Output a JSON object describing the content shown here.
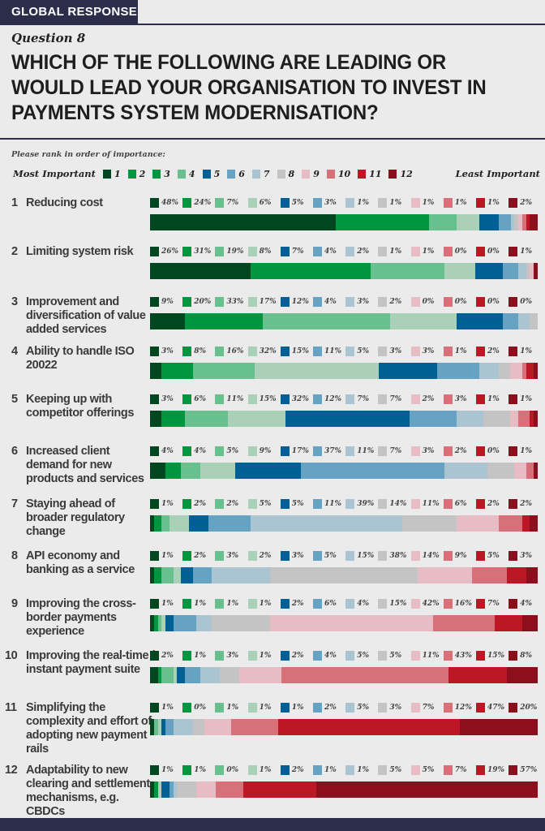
{
  "header": {
    "tag": "GLOBAL RESPONSE",
    "question": "Question 8",
    "title": "WHICH OF THE FOLLOWING ARE LEADING OR WOULD LEAD YOUR ORGANISATION TO INVEST IN PAYMENTS SYSTEM MODERNISATION?"
  },
  "chart_data": {
    "type": "bar",
    "stacked": true,
    "orientation": "horizontal",
    "instruction": "Please rank in order of importance:",
    "legend_start": "Most Important",
    "legend_end": "Least Important",
    "ranks": [
      "1",
      "2",
      "3",
      "4",
      "5",
      "6",
      "7",
      "8",
      "9",
      "10",
      "11",
      "12"
    ],
    "colors": [
      "#00471f",
      "#00963f",
      "#67c08e",
      "#aad0b8",
      "#005f95",
      "#66a2c2",
      "#aac4d2",
      "#c4c4c4",
      "#e7bcc4",
      "#d8707a",
      "#bd1625",
      "#8b0f1c"
    ],
    "legend_colors": [
      "#00471f",
      "#00963f",
      "#00963f",
      "#67c08e",
      "#005f95",
      "#66a2c2",
      "#aac4d2",
      "#c4c4c4",
      "#e7bcc4",
      "#d8707a",
      "#bd1625",
      "#8b0f1c"
    ],
    "categories": [
      {
        "num": "1",
        "label": "Reducing cost",
        "values": [
          48,
          24,
          7,
          6,
          5,
          3,
          1,
          1,
          1,
          1,
          1,
          2
        ]
      },
      {
        "num": "2",
        "label": "Limiting system risk",
        "values": [
          26,
          31,
          19,
          8,
          7,
          4,
          2,
          1,
          1,
          0,
          0,
          1
        ]
      },
      {
        "num": "3",
        "label": "Improvement and diversification of value added services",
        "values": [
          9,
          20,
          33,
          17,
          12,
          4,
          3,
          2,
          0,
          0,
          0,
          0
        ]
      },
      {
        "num": "4",
        "label": "Ability to handle ISO 20022",
        "values": [
          3,
          8,
          16,
          32,
          15,
          11,
          5,
          3,
          3,
          1,
          2,
          1
        ]
      },
      {
        "num": "5",
        "label": "Keeping up with competitor offerings",
        "values": [
          3,
          6,
          11,
          15,
          32,
          12,
          7,
          7,
          2,
          3,
          1,
          1
        ]
      },
      {
        "num": "6",
        "label": "Increased client demand for new products and services",
        "values": [
          4,
          4,
          5,
          9,
          17,
          37,
          11,
          7,
          3,
          2,
          0,
          1
        ]
      },
      {
        "num": "7",
        "label": "Staying ahead of broader regulatory change",
        "values": [
          1,
          2,
          2,
          5,
          5,
          11,
          39,
          14,
          11,
          6,
          2,
          2
        ]
      },
      {
        "num": "8",
        "label": "API economy and banking as a service",
        "values": [
          1,
          2,
          3,
          2,
          3,
          5,
          15,
          38,
          14,
          9,
          5,
          3
        ]
      },
      {
        "num": "9",
        "label": "Improving the cross-border payments experience",
        "values": [
          1,
          1,
          1,
          1,
          2,
          6,
          4,
          15,
          42,
          16,
          7,
          4
        ]
      },
      {
        "num": "10",
        "label": "Improving the real-time / instant payment suite",
        "values": [
          2,
          1,
          3,
          1,
          2,
          4,
          5,
          5,
          11,
          43,
          15,
          8
        ]
      },
      {
        "num": "11",
        "label": "Simplifying the complexity and effort of adopting new payment rails",
        "values": [
          1,
          0,
          1,
          1,
          1,
          2,
          5,
          3,
          7,
          12,
          47,
          20
        ]
      },
      {
        "num": "12",
        "label": "Adaptability to new clearing and settlement mechanisms, e.g. CBDCs",
        "values": [
          1,
          1,
          0,
          1,
          2,
          1,
          1,
          5,
          5,
          7,
          19,
          57
        ]
      }
    ],
    "unit": "%"
  }
}
